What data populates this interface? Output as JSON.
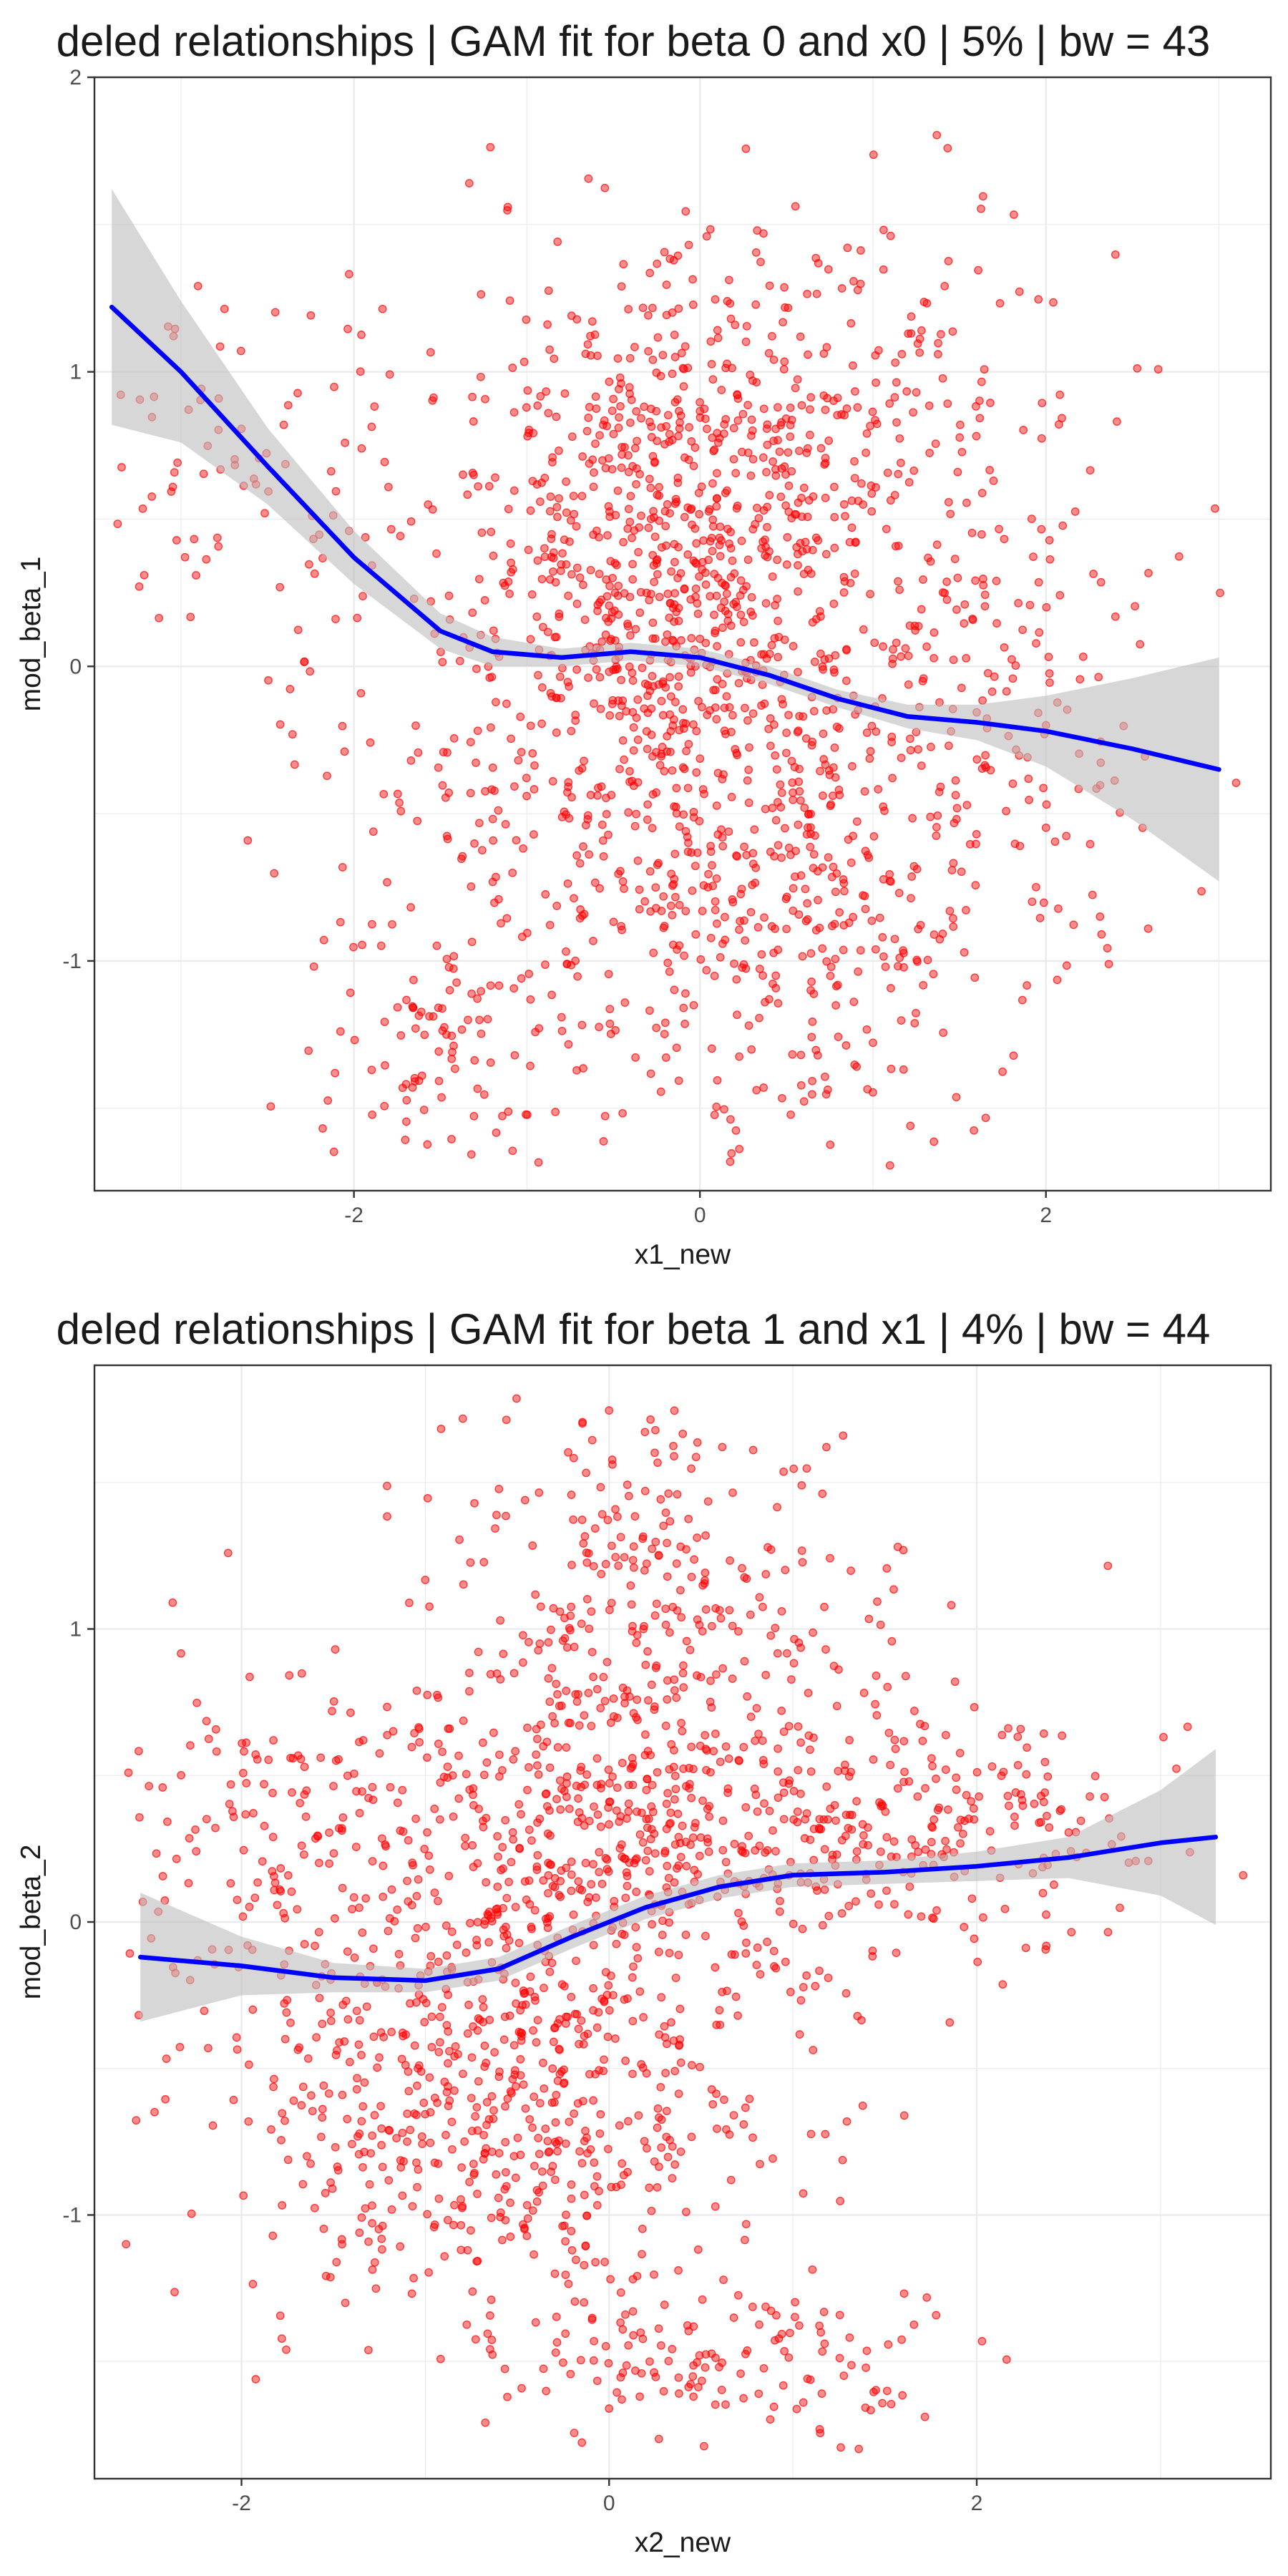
{
  "chart_data": [
    {
      "type": "scatter",
      "title": "deled relationships | GAM fit for beta 0 and x0 | 5% | bw = 43",
      "xlabel": "x1_new",
      "ylabel": "mod_beta_1",
      "xlim": [
        -3.5,
        3.3
      ],
      "ylim": [
        -1.78,
        2.0
      ],
      "x_ticks": [
        -2,
        0,
        2
      ],
      "y_ticks": [
        -1,
        0,
        1,
        2
      ],
      "grid": true,
      "point_color": "#FF0000",
      "line_color": "#0000FF",
      "band_color": "#BDBDBD",
      "point_count": 1900,
      "point_cloud": [
        {
          "x": -0.2,
          "y": 0.3,
          "sx": 0.7,
          "sy": 0.45,
          "weight": 0.4
        },
        {
          "x": 0.2,
          "y": -0.7,
          "sx": 0.9,
          "sy": 0.45,
          "weight": 0.3
        },
        {
          "x": 0.5,
          "y": 0.9,
          "sx": 0.8,
          "sy": 0.35,
          "weight": 0.15
        },
        {
          "x": -2.7,
          "y": 0.7,
          "sx": 0.5,
          "sy": 0.4,
          "weight": 0.04
        },
        {
          "x": 1.8,
          "y": -0.1,
          "sx": 0.5,
          "sy": 0.35,
          "weight": 0.06
        },
        {
          "x": -1.5,
          "y": -1.3,
          "sx": 0.4,
          "sy": 0.2,
          "weight": 0.05
        }
      ],
      "fit": {
        "x": [
          -3.4,
          -3.0,
          -2.5,
          -2.0,
          -1.5,
          -1.2,
          -0.8,
          -0.4,
          0.0,
          0.4,
          0.8,
          1.2,
          1.6,
          2.0,
          2.5,
          3.0
        ],
        "y": [
          1.22,
          1.0,
          0.68,
          0.37,
          0.12,
          0.05,
          0.03,
          0.05,
          0.03,
          -0.03,
          -0.11,
          -0.17,
          -0.19,
          -0.22,
          -0.28,
          -0.35
        ],
        "lower": [
          0.82,
          0.76,
          0.55,
          0.28,
          0.06,
          0.0,
          0.0,
          0.02,
          0.0,
          -0.06,
          -0.14,
          -0.21,
          -0.25,
          -0.34,
          -0.52,
          -0.73
        ],
        "upper": [
          1.62,
          1.24,
          0.81,
          0.46,
          0.18,
          0.1,
          0.06,
          0.08,
          0.06,
          0.0,
          -0.08,
          -0.13,
          -0.13,
          -0.1,
          -0.04,
          0.03
        ]
      }
    },
    {
      "type": "scatter",
      "title": "deled relationships | GAM fit for beta 1 and x1 | 4% | bw = 44",
      "xlabel": "x2_new",
      "ylabel": "mod_beta_2",
      "xlim": [
        -2.8,
        3.6
      ],
      "ylim": [
        -1.9,
        1.9
      ],
      "x_ticks": [
        -2,
        0,
        2
      ],
      "y_ticks": [
        -1,
        0,
        1
      ],
      "grid": true,
      "point_color": "#FF0000",
      "line_color": "#0000FF",
      "band_color": "#BDBDBD",
      "point_count": 1900,
      "point_cloud": [
        {
          "x": -0.6,
          "y": -0.55,
          "sx": 0.7,
          "sy": 0.4,
          "weight": 0.35
        },
        {
          "x": 0.3,
          "y": 0.35,
          "sx": 0.8,
          "sy": 0.35,
          "weight": 0.3
        },
        {
          "x": 0.2,
          "y": 1.2,
          "sx": 0.6,
          "sy": 0.3,
          "weight": 0.1
        },
        {
          "x": 1.8,
          "y": 0.3,
          "sx": 0.6,
          "sy": 0.2,
          "weight": 0.1
        },
        {
          "x": -1.6,
          "y": 0.3,
          "sx": 0.6,
          "sy": 0.3,
          "weight": 0.08
        },
        {
          "x": 0.6,
          "y": -1.5,
          "sx": 0.6,
          "sy": 0.15,
          "weight": 0.07
        }
      ],
      "fit": {
        "x": [
          -2.55,
          -2.0,
          -1.5,
          -1.0,
          -0.6,
          -0.2,
          0.2,
          0.6,
          1.0,
          1.5,
          2.0,
          2.5,
          3.0,
          3.3
        ],
        "y": [
          -0.12,
          -0.15,
          -0.19,
          -0.2,
          -0.16,
          -0.05,
          0.05,
          0.12,
          0.16,
          0.17,
          0.19,
          0.22,
          0.27,
          0.29
        ],
        "lower": [
          -0.34,
          -0.25,
          -0.24,
          -0.24,
          -0.2,
          -0.09,
          0.01,
          0.08,
          0.12,
          0.13,
          0.14,
          0.15,
          0.09,
          -0.01
        ],
        "upper": [
          0.1,
          -0.05,
          -0.14,
          -0.16,
          -0.12,
          -0.01,
          0.09,
          0.16,
          0.2,
          0.21,
          0.24,
          0.29,
          0.45,
          0.59
        ]
      }
    }
  ]
}
